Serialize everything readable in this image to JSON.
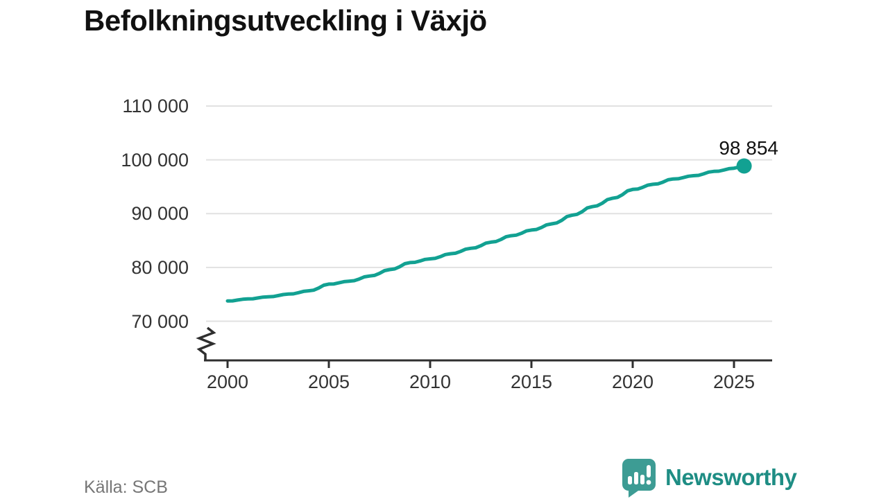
{
  "title": "Befolkningsutveckling i Växjö",
  "source": "Källa: SCB",
  "branding": {
    "name": "Newsworthy",
    "icon": "newsworthy-bar-chart-bubble-icon",
    "bubble_color": "#3d9c94",
    "text_color": "#1e8d84"
  },
  "colors": {
    "line": "#12a192",
    "marker": "#12a192",
    "grid": "#e1e1e1",
    "axis": "#2f2f2f",
    "text": "#333333",
    "title": "#111111",
    "muted": "#767676"
  },
  "chart_data": {
    "type": "line",
    "title": "Befolkningsutveckling i Växjö",
    "xlabel": "",
    "ylabel": "",
    "x_start": 2000,
    "x_step": 0.25,
    "x_unit": "year (quarterly data)",
    "xlim": [
      1999,
      2027
    ],
    "ylim": [
      70000,
      110000
    ],
    "axis_break": true,
    "grid": "horizontal",
    "legend": null,
    "y_ticks": [
      {
        "value": 70000,
        "label": "70 000"
      },
      {
        "value": 80000,
        "label": "80 000"
      },
      {
        "value": 90000,
        "label": "90 000"
      },
      {
        "value": 100000,
        "label": "100 000"
      },
      {
        "value": 110000,
        "label": "110 000"
      }
    ],
    "x_ticks": [
      {
        "value": 2000,
        "label": "2000"
      },
      {
        "value": 2005,
        "label": "2005"
      },
      {
        "value": 2010,
        "label": "2010"
      },
      {
        "value": 2015,
        "label": "2015"
      },
      {
        "value": 2020,
        "label": "2020"
      },
      {
        "value": 2025,
        "label": "2025"
      }
    ],
    "values": [
      73770,
      73786,
      73942,
      74083,
      74150,
      74168,
      74330,
      74480,
      74550,
      74580,
      74770,
      74965,
      75050,
      75092,
      75310,
      75550,
      75650,
      75770,
      76170,
      76703,
      76900,
      76936,
      77140,
      77358,
      77450,
      77534,
      77850,
      78248,
      78400,
      78514,
      78900,
      79410,
      79600,
      79726,
      80140,
      80695,
      80900,
      80954,
      81200,
      81485,
      81600,
      81684,
      82000,
      82398,
      82550,
      82640,
      82970,
      83390,
      83550,
      83658,
      84030,
      84518,
      84700,
      84814,
      85200,
      85710,
      85900,
      85996,
      86340,
      86783,
      86950,
      87058,
      87430,
      87918,
      88100,
      88262,
      88760,
      89450,
      89700,
      89862,
      90360,
      91050,
      91300,
      91456,
      91940,
      92608,
      92850,
      93018,
      93530,
      94243,
      94500,
      94584,
      94900,
      95298,
      95450,
      95540,
      95870,
      96290,
      96450,
      96492,
      96710,
      96950,
      97050,
      97116,
      97390,
      97720,
      97850,
      97892,
      98110,
      98350,
      98450,
      98650,
      98854
    ],
    "last_point": {
      "x": 2025.5,
      "y": 98854,
      "label": "98 854"
    }
  }
}
